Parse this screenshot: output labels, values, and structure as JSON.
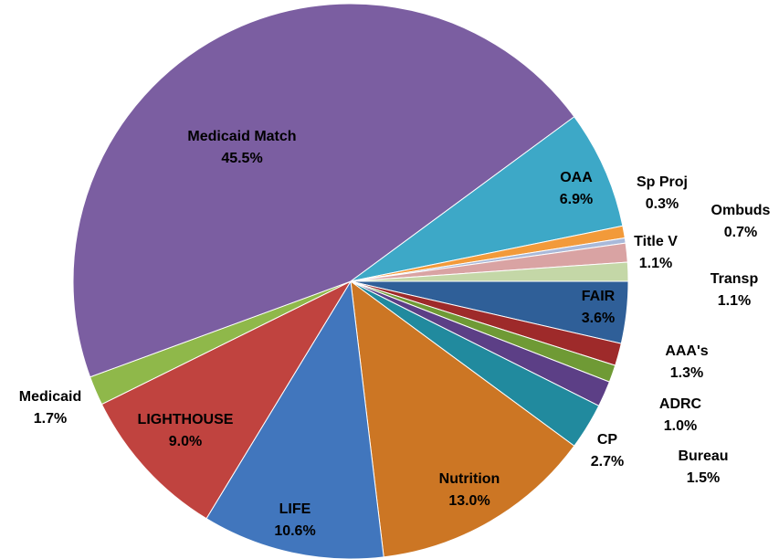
{
  "chart_data": {
    "type": "pie",
    "categories": [
      "FAIR",
      "AAA's",
      "ADRC",
      "Bureau",
      "CP",
      "Nutrition",
      "LIFE",
      "LIGHTHOUSE",
      "Medicaid",
      "Medicaid Match",
      "OAA",
      "Ombuds",
      "Sp Proj",
      "Title V",
      "Transp"
    ],
    "values": [
      3.6,
      1.3,
      1.0,
      1.5,
      2.7,
      13.0,
      10.6,
      9.0,
      1.7,
      45.5,
      6.9,
      0.7,
      0.3,
      1.1,
      1.1
    ],
    "value_labels": [
      "3.6%",
      "1.3%",
      "1.0%",
      "1.5%",
      "2.7%",
      "13.0%",
      "10.6%",
      "9.0%",
      "1.7%",
      "45.5%",
      "6.9%",
      "0.7%",
      "0.3%",
      "1.1%",
      "1.1%"
    ],
    "colors": [
      "#2f5f98",
      "#9e2a2a",
      "#6f9a35",
      "#5c3f86",
      "#218a9e",
      "#cc7624",
      "#4176bd",
      "#c0433f",
      "#8fb84a",
      "#7b5ea1",
      "#3da8c7",
      "#f29a3a",
      "#a9b9d9",
      "#d9a3a3",
      "#c4d7a7"
    ]
  }
}
